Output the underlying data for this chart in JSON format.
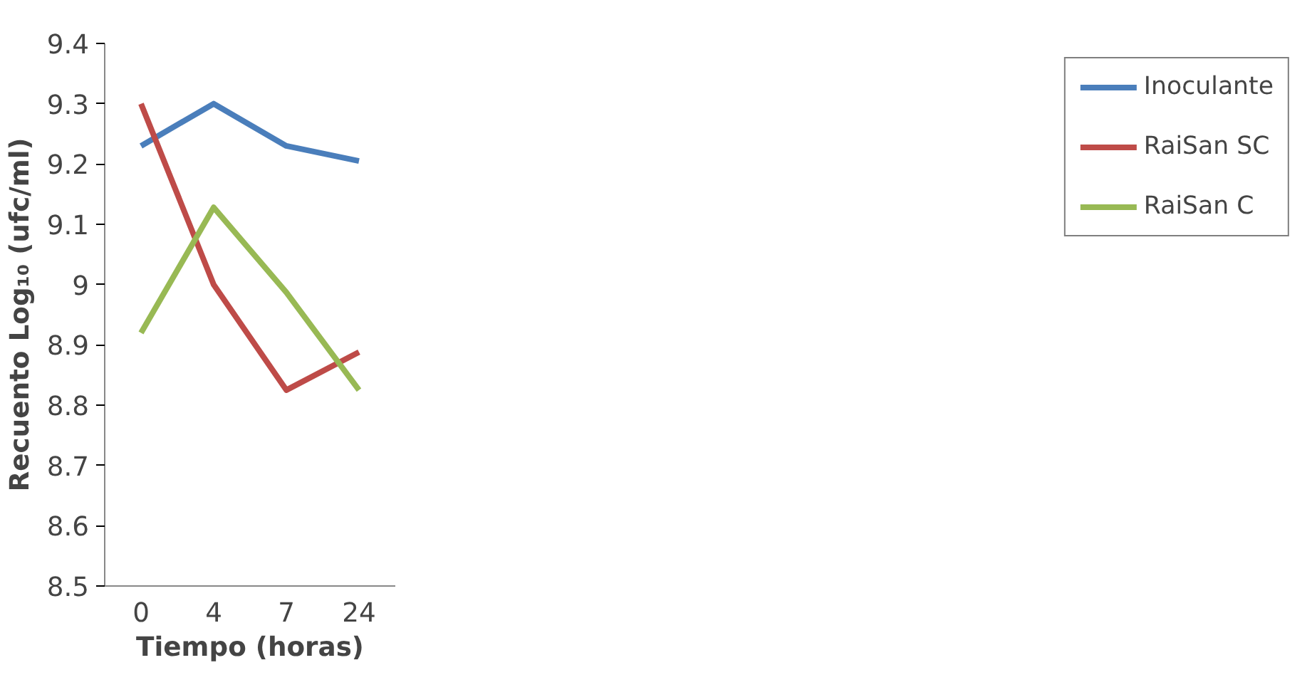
{
  "chart_data": {
    "type": "line",
    "xlabel": "Tiempo (horas)",
    "ylabel": "Recuento Log₁₀ (ufc/ml)",
    "categories": [
      "0",
      "4",
      "7",
      "24"
    ],
    "series": [
      {
        "name": "Inoculante",
        "color": "#4a7ebb",
        "values": [
          9.23,
          9.3,
          9.23,
          9.205
        ]
      },
      {
        "name": "RaiSan SC",
        "color": "#be4b48",
        "values": [
          9.3,
          9.0,
          8.825,
          8.888
        ]
      },
      {
        "name": "RaiSan C",
        "color": "#98b954",
        "values": [
          8.92,
          9.128,
          8.987,
          8.825
        ]
      }
    ],
    "ylim": [
      8.5,
      9.4
    ],
    "yticks": [
      {
        "value": 8.5,
        "label": "8.5"
      },
      {
        "value": 8.6,
        "label": "8.6"
      },
      {
        "value": 8.7,
        "label": "8.7"
      },
      {
        "value": 8.8,
        "label": "8.8"
      },
      {
        "value": 8.9,
        "label": "8.9"
      },
      9,
      {
        "value": 9.1,
        "label": "9.1"
      },
      {
        "value": 9.2,
        "label": "9.2"
      },
      {
        "value": 9.3,
        "label": "9.3"
      },
      {
        "value": 9.4,
        "label": "9.4"
      }
    ],
    "grid": false,
    "legend": "right",
    "marker": "none",
    "line_style": "solid"
  }
}
